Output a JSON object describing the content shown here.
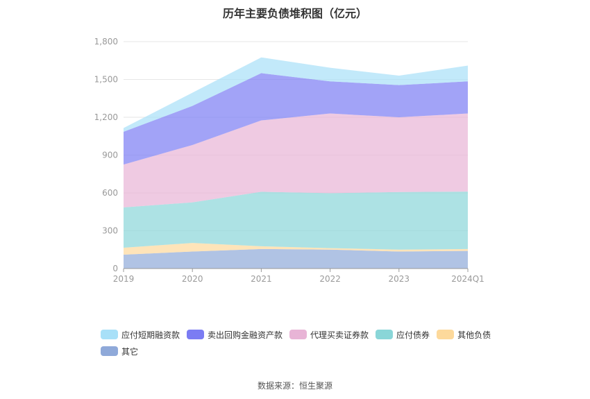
{
  "chart_data": {
    "type": "area",
    "stacked": true,
    "title": "历年主要负债堆积图（亿元）",
    "categories": [
      "2019",
      "2020",
      "2021",
      "2022",
      "2023",
      "2024Q1"
    ],
    "ylim": [
      0,
      1800
    ],
    "yticks": [
      0,
      300,
      600,
      900,
      1200,
      1500,
      1800
    ],
    "ytick_labels": [
      "0",
      "300",
      "600",
      "900",
      "1,200",
      "1,500",
      "1,800"
    ],
    "grid": true,
    "legend_position": "bottom",
    "series": [
      {
        "name": "其它",
        "color": "#8fa9d9",
        "values": [
          110,
          135,
          155,
          150,
          135,
          140
        ]
      },
      {
        "name": "其他负债",
        "color": "#fdd99b",
        "values": [
          55,
          68,
          22,
          12,
          15,
          15
        ]
      },
      {
        "name": "应付债券",
        "color": "#8ad6d8",
        "values": [
          320,
          322,
          432,
          436,
          457,
          455
        ]
      },
      {
        "name": "代理买卖证券款",
        "color": "#e8b4d6",
        "values": [
          340,
          455,
          566,
          632,
          593,
          620
        ]
      },
      {
        "name": "卖出回购金融资产款",
        "color": "#7b7cf3",
        "values": [
          260,
          310,
          375,
          255,
          255,
          255
        ]
      },
      {
        "name": "应付短期融资款",
        "color": "#a8e0f8",
        "values": [
          30,
          105,
          125,
          108,
          75,
          125
        ]
      }
    ]
  },
  "legend_order": [
    "应付短期融资款",
    "卖出回购金融资产款",
    "代理买卖证券款",
    "应付债券",
    "其他负债",
    "其它"
  ],
  "source": "数据来源：恒生聚源"
}
